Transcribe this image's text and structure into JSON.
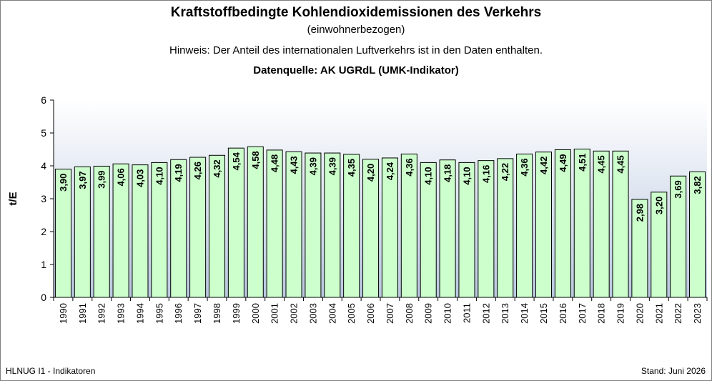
{
  "header": {
    "title": "Kraftstoffbedingte Kohlendioxidemissionen des Verkehrs",
    "subtitle": "(einwohnerbezogen)",
    "note": "Hinweis: Der Anteil des internationalen Luftverkehrs ist in den Daten enthalten.",
    "source": "Datenquelle: AK UGRdL (UMK-Indikator)"
  },
  "footer": {
    "left": "HLNUG I1 - Indikatoren",
    "right": "Stand: Juni 2026"
  },
  "colors": {
    "bar_fill": "#ccffcc",
    "bar_stroke": "#000000",
    "plot_gradient_top": "#ffffff",
    "plot_gradient_bottom": "#b9c8e0"
  },
  "chart_data": {
    "type": "bar",
    "title": "Kraftstoffbedingte Kohlendioxidemissionen des Verkehrs",
    "subtitle": "(einwohnerbezogen)",
    "xlabel": "",
    "ylabel": "t/E",
    "ylim": [
      0,
      6
    ],
    "yticks": [
      "0",
      "1",
      "2",
      "3",
      "4",
      "5",
      "6"
    ],
    "grid": false,
    "categories": [
      "1990",
      "1991",
      "1992",
      "1993",
      "1994",
      "1995",
      "1996",
      "1997",
      "1998",
      "1999",
      "2000",
      "2001",
      "2002",
      "2003",
      "2004",
      "2005",
      "2006",
      "2007",
      "2008",
      "2009",
      "2010",
      "2011",
      "2012",
      "2013",
      "2014",
      "2015",
      "2016",
      "2017",
      "2018",
      "2019",
      "2020",
      "2021",
      "2022",
      "2023"
    ],
    "values": [
      3.9,
      3.97,
      3.99,
      4.06,
      4.03,
      4.1,
      4.19,
      4.26,
      4.32,
      4.54,
      4.58,
      4.48,
      4.43,
      4.39,
      4.39,
      4.35,
      4.2,
      4.24,
      4.36,
      4.1,
      4.18,
      4.1,
      4.16,
      4.22,
      4.36,
      4.42,
      4.49,
      4.51,
      4.45,
      4.45,
      2.98,
      3.2,
      3.69,
      3.82
    ],
    "data_labels": [
      "3,90",
      "3,97",
      "3,99",
      "4,06",
      "4,03",
      "4,10",
      "4,19",
      "4,26",
      "4,32",
      "4,54",
      "4,58",
      "4,48",
      "4,43",
      "4,39",
      "4,39",
      "4,35",
      "4,20",
      "4,24",
      "4,36",
      "4,10",
      "4,18",
      "4,10",
      "4,16",
      "4,22",
      "4,36",
      "4,42",
      "4,49",
      "4,51",
      "4,45",
      "4,45",
      "2,98",
      "3,20",
      "3,69",
      "3,82"
    ]
  }
}
